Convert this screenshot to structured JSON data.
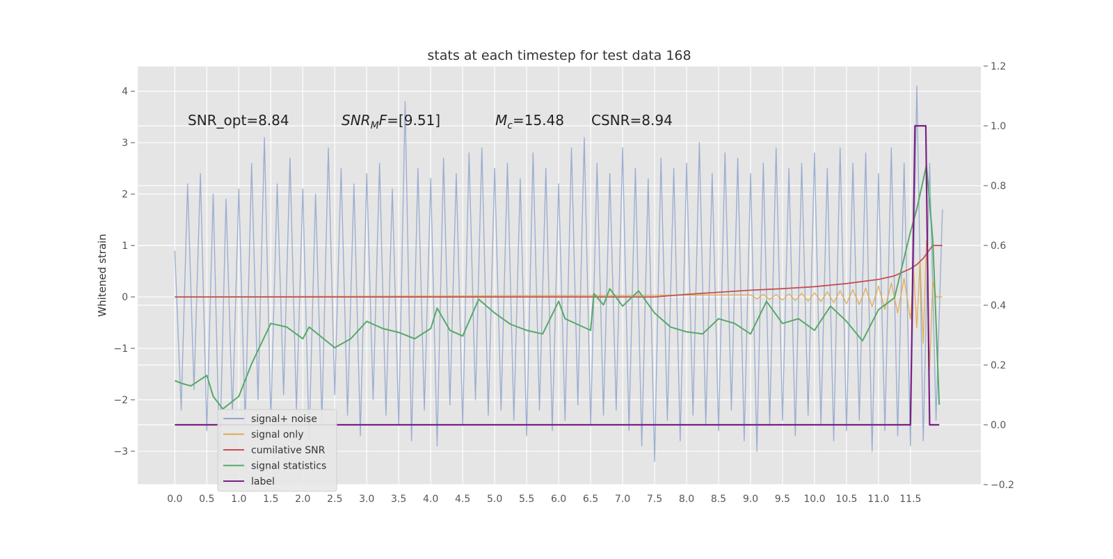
{
  "chart_data": {
    "type": "line",
    "title": "stats at each timestep for test data 168",
    "ylabel": "Whitened strain",
    "grid": true,
    "legend": "lower left",
    "xlim": [
      -0.58,
      12.6
    ],
    "ylim": [
      -3.65,
      4.49
    ],
    "y2lim": [
      -0.2,
      1.2
    ],
    "xticks": [
      {
        "value": 0,
        "label": "0.0"
      },
      {
        "value": 0.5,
        "label": "0.5"
      },
      {
        "value": 1,
        "label": "1.0"
      },
      {
        "value": 1.5,
        "label": "1.5"
      },
      {
        "value": 2,
        "label": "2.0"
      },
      {
        "value": 2.5,
        "label": "2.5"
      },
      {
        "value": 3,
        "label": "3.0"
      },
      {
        "value": 3.5,
        "label": "3.5"
      },
      {
        "value": 4,
        "label": "4.0"
      },
      {
        "value": 4.5,
        "label": "4.5"
      },
      {
        "value": 5,
        "label": "5.0"
      },
      {
        "value": 5.5,
        "label": "5.5"
      },
      {
        "value": 6,
        "label": "6.0"
      },
      {
        "value": 6.5,
        "label": "6.5"
      },
      {
        "value": 7,
        "label": "7.0"
      },
      {
        "value": 7.5,
        "label": "7.5"
      },
      {
        "value": 8,
        "label": "8.0"
      },
      {
        "value": 8.5,
        "label": "8.5"
      },
      {
        "value": 9,
        "label": "9.0"
      },
      {
        "value": 9.5,
        "label": "9.5"
      },
      {
        "value": 10,
        "label": "10.0"
      },
      {
        "value": 10.5,
        "label": "10.5"
      },
      {
        "value": 11,
        "label": "11.0"
      },
      {
        "value": 11.5,
        "label": "11.5"
      }
    ],
    "yticks": [
      {
        "value": -3,
        "label": "−3"
      },
      {
        "value": -2,
        "label": "−2"
      },
      {
        "value": -1,
        "label": "−1"
      },
      0,
      1,
      2,
      3,
      4
    ],
    "y2ticks": [
      {
        "value": -0.2,
        "label": "−0.2"
      },
      {
        "value": 0,
        "label": "0.0"
      },
      0.2,
      0.4,
      0.6,
      0.8,
      {
        "value": 1,
        "label": "1.0"
      },
      1.2
    ],
    "annotations": [
      {
        "text": "SNR_opt=8.84"
      },
      {
        "italic": "SNR",
        "sub": "M",
        "italic2": "F",
        "text": "=[9.51]"
      },
      {
        "italic": "M",
        "sub": "c",
        "text": "=15.48"
      },
      {
        "text": "CSNR=8.94"
      }
    ],
    "series": [
      {
        "name": "signal+ noise",
        "color": "#8fa5cc",
        "x": [
          0,
          0.1,
          0.2,
          0.3,
          0.4,
          0.5,
          0.6,
          0.7,
          0.8,
          0.9,
          1,
          1.1,
          1.2,
          1.3,
          1.4,
          1.5,
          1.6,
          1.7,
          1.8,
          1.9,
          2,
          2.1,
          2.2,
          2.3,
          2.4,
          2.5,
          2.6,
          2.7,
          2.8,
          2.9,
          3,
          3.1,
          3.2,
          3.3,
          3.4,
          3.5,
          3.6,
          3.7,
          3.8,
          3.9,
          4,
          4.1,
          4.2,
          4.3,
          4.4,
          4.5,
          4.6,
          4.7,
          4.8,
          4.9,
          5,
          5.1,
          5.2,
          5.3,
          5.4,
          5.5,
          5.6,
          5.7,
          5.8,
          5.9,
          6,
          6.1,
          6.2,
          6.3,
          6.4,
          6.5,
          6.6,
          6.7,
          6.8,
          6.9,
          7,
          7.1,
          7.2,
          7.3,
          7.4,
          7.5,
          7.6,
          7.7,
          7.8,
          7.9,
          8,
          8.1,
          8.2,
          8.3,
          8.4,
          8.5,
          8.6,
          8.7,
          8.8,
          8.9,
          9,
          9.1,
          9.2,
          9.3,
          9.4,
          9.5,
          9.6,
          9.7,
          9.8,
          9.9,
          10,
          10.1,
          10.2,
          10.3,
          10.4,
          10.5,
          10.6,
          10.7,
          10.8,
          10.9,
          11,
          11.1,
          11.2,
          11.3,
          11.4,
          11.5,
          11.6,
          11.7,
          11.8,
          11.9,
          12
        ],
        "values": [
          0.9,
          -2.2,
          2.2,
          -1.8,
          2.4,
          -2.6,
          2.0,
          -3.2,
          1.9,
          -2.3,
          2.1,
          -2.5,
          2.6,
          -2.0,
          3.1,
          -2.4,
          2.2,
          -1.9,
          2.7,
          -2.2,
          2.1,
          -2.8,
          2.0,
          -2.4,
          2.9,
          -1.9,
          2.5,
          -2.3,
          2.2,
          -2.7,
          2.4,
          -2.0,
          2.6,
          -2.3,
          2.1,
          -2.5,
          3.8,
          -2.8,
          2.5,
          -2.2,
          2.3,
          -2.9,
          2.7,
          -2.1,
          2.4,
          -2.5,
          2.8,
          -2.0,
          2.9,
          -2.3,
          2.5,
          -2.2,
          2.6,
          -2.4,
          2.3,
          -2.7,
          2.8,
          -2.2,
          2.5,
          -2.6,
          2.2,
          -2.4,
          2.9,
          -2.1,
          3.1,
          -2.5,
          2.6,
          -2.3,
          2.4,
          -2.2,
          2.9,
          -2.6,
          2.5,
          -2.9,
          2.3,
          -3.2,
          2.7,
          -2.4,
          2.5,
          -2.8,
          2.6,
          -2.3,
          3.0,
          -2.5,
          2.4,
          -2.6,
          2.8,
          -2.2,
          2.7,
          -2.8,
          2.4,
          -3.0,
          2.6,
          -2.5,
          2.9,
          -2.4,
          2.5,
          -2.7,
          2.6,
          -2.3,
          2.8,
          -2.5,
          2.5,
          -2.8,
          2.9,
          -2.6,
          2.6,
          -2.4,
          2.8,
          -3.0,
          2.4,
          -2.6,
          2.9,
          -2.7,
          2.6,
          -2.9,
          4.1,
          -2.8,
          2.6,
          -2.4,
          1.7
        ]
      },
      {
        "name": "signal only",
        "color": "#e0a84a",
        "x": [
          0,
          9,
          9.1,
          9.2,
          9.3,
          9.4,
          9.5,
          9.6,
          9.7,
          9.8,
          9.9,
          10,
          10.1,
          10.2,
          10.3,
          10.4,
          10.5,
          10.6,
          10.7,
          10.8,
          10.9,
          11,
          11.1,
          11.2,
          11.3,
          11.4,
          11.5,
          11.55,
          11.6,
          11.65,
          11.7,
          11.75,
          11.8,
          11.85,
          11.9,
          12
        ],
        "values": [
          0,
          0.04,
          -0.04,
          0.05,
          -0.05,
          0.05,
          -0.06,
          0.06,
          -0.07,
          0.07,
          -0.08,
          0.08,
          -0.09,
          0.1,
          -0.11,
          0.12,
          -0.13,
          0.14,
          -0.15,
          0.17,
          -0.19,
          0.21,
          -0.24,
          0.27,
          -0.31,
          0.36,
          -0.43,
          0.5,
          -0.6,
          0.72,
          -0.9,
          1.1,
          -1.4,
          0.3,
          0,
          0
        ]
      },
      {
        "name": "cumilative SNR",
        "color": "#c44e52",
        "x": [
          0,
          7.5,
          8,
          8.5,
          9,
          9.5,
          10,
          10.5,
          11,
          11.25,
          11.5,
          11.6,
          11.7,
          11.8,
          11.85,
          12
        ],
        "values": [
          0,
          0,
          0.05,
          0.09,
          0.13,
          0.16,
          0.2,
          0.26,
          0.34,
          0.41,
          0.55,
          0.63,
          0.75,
          0.92,
          1,
          1
        ]
      },
      {
        "name": "signal statistics",
        "color": "#55a868",
        "axis": "y2",
        "x": [
          0,
          0.1,
          0.25,
          0.5,
          0.6,
          0.75,
          1,
          1.2,
          1.5,
          1.75,
          2,
          2.1,
          2.5,
          2.75,
          3,
          3.25,
          3.5,
          3.75,
          4,
          4.1,
          4.3,
          4.5,
          4.75,
          5,
          5.25,
          5.5,
          5.75,
          6,
          6.1,
          6.5,
          6.55,
          6.7,
          6.8,
          7,
          7.25,
          7.5,
          7.75,
          8,
          8.25,
          8.5,
          8.75,
          9,
          9.25,
          9.5,
          9.75,
          10,
          10.25,
          10.5,
          10.75,
          11,
          11.25,
          11.5,
          11.6,
          11.75,
          11.85,
          11.95
        ],
        "values": [
          0.148,
          0.139,
          0.13,
          0.165,
          0.095,
          0.053,
          0.095,
          0.204,
          0.339,
          0.327,
          0.288,
          0.327,
          0.258,
          0.288,
          0.346,
          0.322,
          0.309,
          0.288,
          0.322,
          0.39,
          0.316,
          0.297,
          0.42,
          0.374,
          0.336,
          0.316,
          0.304,
          0.413,
          0.355,
          0.316,
          0.439,
          0.401,
          0.455,
          0.397,
          0.448,
          0.374,
          0.327,
          0.311,
          0.304,
          0.355,
          0.339,
          0.304,
          0.413,
          0.339,
          0.355,
          0.316,
          0.397,
          0.346,
          0.281,
          0.385,
          0.425,
          0.645,
          0.722,
          0.868,
          0.617,
          0.067
        ]
      },
      {
        "name": "label",
        "color": "#7b1f82",
        "axis": "y2",
        "x": [
          0,
          11.5,
          11.57,
          11.74,
          11.8,
          11.95
        ],
        "values": [
          0,
          0,
          1,
          1,
          0,
          0
        ]
      }
    ]
  }
}
